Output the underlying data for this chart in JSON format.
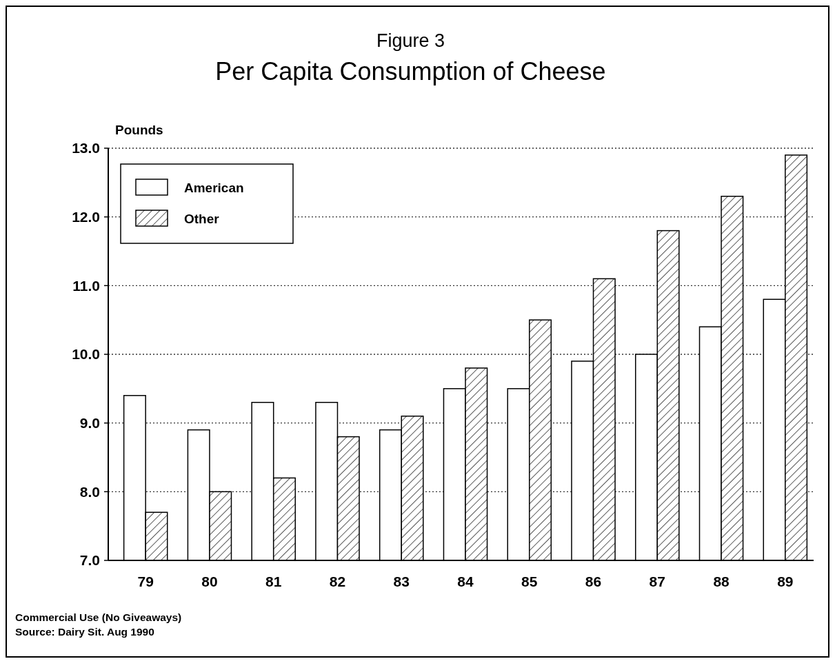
{
  "chart_data": {
    "type": "bar",
    "title": "Per Capita Consumption of Cheese",
    "subtitle": "Figure 3",
    "ylabel": "Pounds",
    "categories": [
      "79",
      "80",
      "81",
      "82",
      "83",
      "84",
      "85",
      "86",
      "87",
      "88",
      "89"
    ],
    "series": [
      {
        "name": "American",
        "color": "#ffffff",
        "values": [
          9.4,
          8.9,
          9.3,
          9.3,
          8.9,
          9.5,
          9.5,
          9.9,
          10.0,
          10.4,
          10.8
        ]
      },
      {
        "name": "Other",
        "color": "#000000",
        "values": [
          7.7,
          8.0,
          8.2,
          8.8,
          9.1,
          9.8,
          10.5,
          11.1,
          11.8,
          12.3,
          12.9
        ]
      }
    ],
    "ylim": [
      7,
      13
    ],
    "yticks": [
      {
        "value": 7,
        "label": "7.0"
      },
      {
        "value": 8,
        "label": "8.0"
      },
      {
        "value": 9,
        "label": "9.0"
      },
      {
        "value": 10,
        "label": "10.0"
      },
      {
        "value": 11,
        "label": "11.0"
      },
      {
        "value": 12,
        "label": "12.0"
      },
      {
        "value": 13,
        "label": "13.0"
      }
    ],
    "grid": "y",
    "legend": "top left",
    "annotations": [
      "Commercial Use (No Giveaways)",
      "Source:  Dairy Sit. Aug 1990"
    ]
  }
}
